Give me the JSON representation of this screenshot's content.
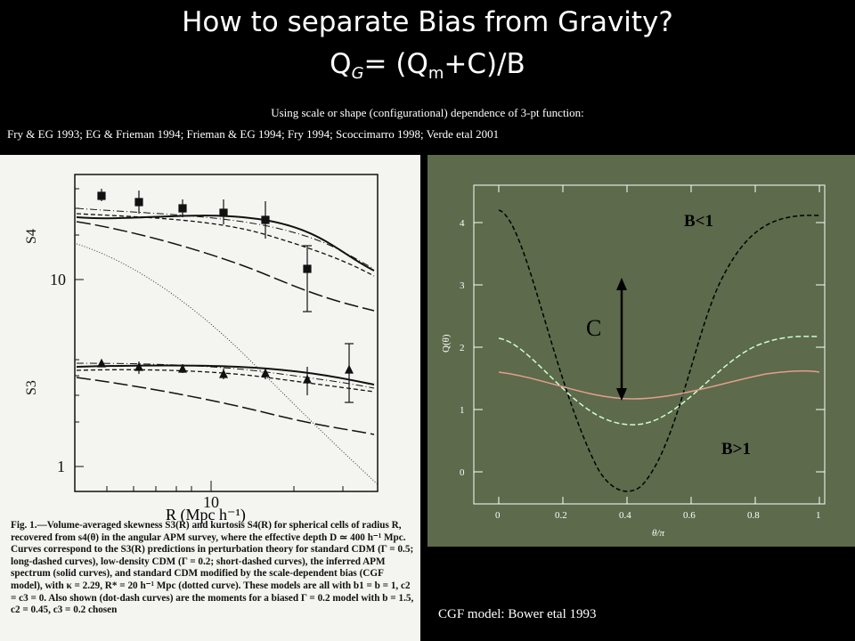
{
  "header": {
    "title": "How to separate Bias from Gravity?",
    "formula_q": "Q",
    "formula_g": "G",
    "formula_mid": "= (Q",
    "formula_m": "m",
    "formula_end": "+C)/B",
    "subtitle": "Using scale or shape (configurational) dependence of 3-pt function:",
    "references": "Fry & EG 1993; EG & Frieman 1994; Frieman & EG 1994; Fry 1994; Scoccimarro 1998; Verde etal 2001"
  },
  "left_figure": {
    "y_label_top": "S4",
    "y_label_bottom": "S3",
    "y_tick_10": "10",
    "y_tick_1": "1",
    "x_tick_10": "10",
    "x_label": "R (Mpc h⁻¹)",
    "caption": "Fig. 1.—Volume-averaged skewness S3(R) and kurtosis S4(R) for spherical cells of radius R, recovered from s4(θ) in the angular APM survey, where the effective depth D ≃ 400 h⁻¹ Mpc. Curves correspond to the S3(R) predictions in perturbation theory for standard CDM (Γ = 0.5; long-dashed curves), low-density CDM (Γ = 0.2; short-dashed curves), the inferred APM spectrum (solid curves), and standard CDM modified by the scale-dependent bias (CGF model), with κ = 2.29, R* = 20 h⁻¹ Mpc (dotted curve). These models are all with b1 = b = 1, c2 = c3 = 0. Also shown (dot-dash curves) are the moments for a biased Γ = 0.2 model with b = 1.5, c2 = 0.45, c3 = 0.2 chosen"
  },
  "right_figure": {
    "y_axis_label": "Q(θ)",
    "x_axis_label": "θ/π",
    "x_ticks": [
      "0",
      "0.2",
      "0.4",
      "0.6",
      "0.8",
      "1"
    ],
    "y_ticks": [
      "0",
      "1",
      "2",
      "3",
      "4"
    ],
    "label_b_lt": "B<1",
    "label_b_gt": "B>1",
    "label_c": "C",
    "colors": {
      "background": "#5d6a4b",
      "black_curve": "#000000",
      "green_curve": "#ccffcc",
      "pink_curve": "#e0a090"
    }
  },
  "footer": {
    "credit": "CGF model: Bower etal 1993"
  }
}
